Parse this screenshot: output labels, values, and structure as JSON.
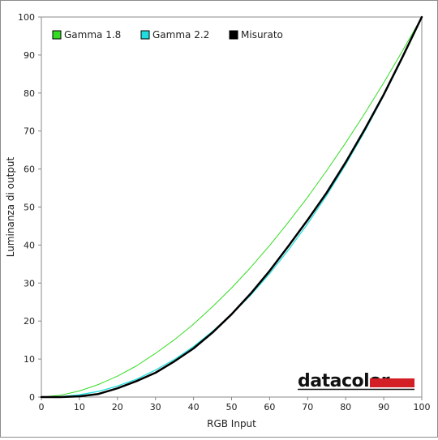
{
  "chart_data": {
    "type": "line",
    "title": "",
    "xlabel": "RGB Input",
    "ylabel": "Luminanza di output",
    "xlim": [
      0,
      100
    ],
    "ylim": [
      0,
      100
    ],
    "x_ticks": [
      0,
      10,
      20,
      30,
      40,
      50,
      60,
      70,
      80,
      90,
      100
    ],
    "y_ticks": [
      0,
      10,
      20,
      30,
      40,
      50,
      60,
      70,
      80,
      90,
      100
    ],
    "grid": false,
    "legend_position": "top-left",
    "series": [
      {
        "name": "Gamma 1.8",
        "color": "#33dd22",
        "x": [
          0,
          5,
          10,
          15,
          20,
          25,
          30,
          35,
          40,
          45,
          50,
          55,
          60,
          65,
          70,
          75,
          80,
          85,
          90,
          95,
          100
        ],
        "y": [
          0,
          0.5,
          1.6,
          3.3,
          5.5,
          8.2,
          11.5,
          15.1,
          19.2,
          23.8,
          28.7,
          34.1,
          39.9,
          46.1,
          52.6,
          59.6,
          66.9,
          74.6,
          82.7,
          91.2,
          100
        ]
      },
      {
        "name": "Gamma 2.2",
        "color": "#22dddd",
        "x": [
          0,
          5,
          10,
          15,
          20,
          25,
          30,
          35,
          40,
          45,
          50,
          55,
          60,
          65,
          70,
          75,
          80,
          85,
          90,
          95,
          100
        ],
        "y": [
          0,
          0.1,
          0.6,
          1.5,
          2.9,
          4.7,
          7.1,
          9.9,
          13.3,
          17.3,
          21.8,
          26.8,
          32.5,
          38.8,
          45.6,
          53.1,
          61.2,
          69.9,
          79.3,
          89.3,
          100
        ]
      },
      {
        "name": "Misurato",
        "color": "#000000",
        "x": [
          0,
          5,
          10,
          15,
          20,
          25,
          30,
          35,
          40,
          45,
          50,
          55,
          60,
          65,
          70,
          75,
          80,
          85,
          90,
          95,
          100
        ],
        "y": [
          0,
          0,
          0.2,
          0.8,
          2.3,
          4.2,
          6.4,
          9.4,
          12.8,
          17.0,
          21.8,
          27.2,
          33.2,
          39.8,
          46.6,
          53.8,
          61.8,
          70.4,
          79.6,
          89.6,
          100
        ]
      }
    ]
  },
  "logo": {
    "text": "datacolor",
    "bar_color": "#d32027"
  }
}
